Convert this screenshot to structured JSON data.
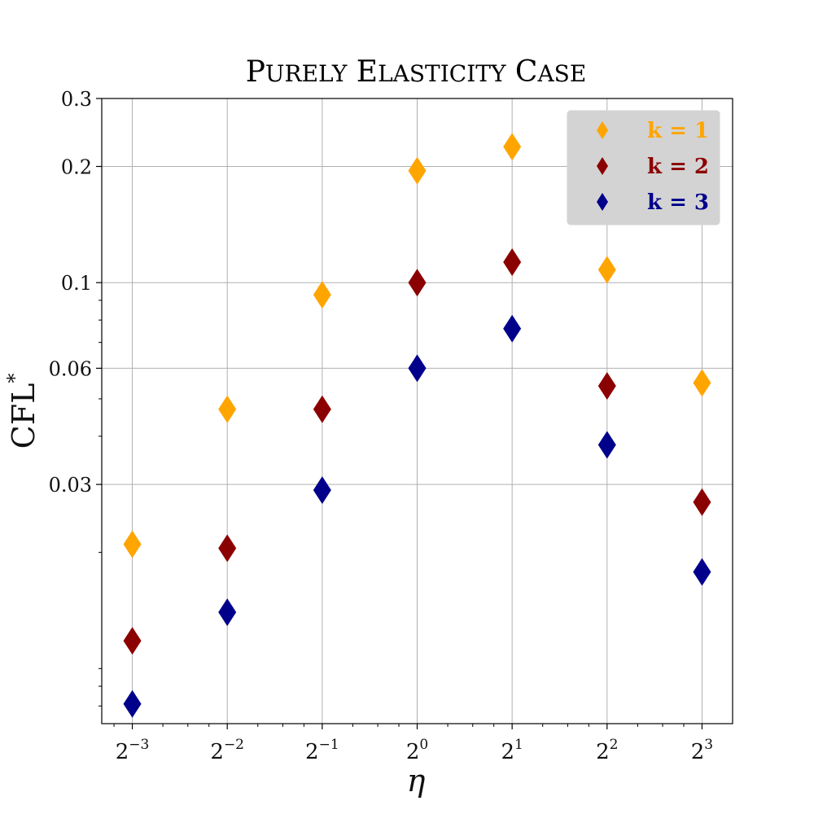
{
  "chart_data": {
    "type": "scatter",
    "title": "Purely Elasticity Case",
    "xlabel": "η",
    "ylabel": "CFL*",
    "xscale": "log2",
    "yscale": "log",
    "x": [
      0.125,
      0.25,
      0.5,
      1,
      2,
      4,
      8
    ],
    "x_tick_labels": [
      {
        "base": "2",
        "exp": "−3"
      },
      {
        "base": "2",
        "exp": "−2"
      },
      {
        "base": "2",
        "exp": "−1"
      },
      {
        "base": "2",
        "exp": "0"
      },
      {
        "base": "2",
        "exp": "1"
      },
      {
        "base": "2",
        "exp": "2"
      },
      {
        "base": "2",
        "exp": "3"
      }
    ],
    "y_ticks": [
      0.03,
      0.06,
      0.1,
      0.2,
      0.3
    ],
    "y_tick_labels": [
      "0.03",
      "0.06",
      "0.1",
      "0.2",
      "0.3"
    ],
    "ylim": [
      0.0072,
      0.3
    ],
    "xlim": [
      0.1,
      10
    ],
    "grid": true,
    "legend_position": "top-right",
    "series": [
      {
        "name": "k = 1",
        "color": "#FFA500",
        "marker": "diamond",
        "values": [
          0.021,
          0.047,
          0.093,
          0.195,
          0.225,
          0.108,
          0.055
        ]
      },
      {
        "name": "k = 2",
        "color": "#8B0000",
        "marker": "diamond",
        "values": [
          0.0118,
          0.0205,
          0.047,
          0.1,
          0.113,
          0.054,
          0.027
        ]
      },
      {
        "name": "k = 3",
        "color": "#00008B",
        "marker": "diamond",
        "values": [
          0.0081,
          0.014,
          0.029,
          0.06,
          0.076,
          0.038,
          0.0178
        ]
      }
    ]
  }
}
